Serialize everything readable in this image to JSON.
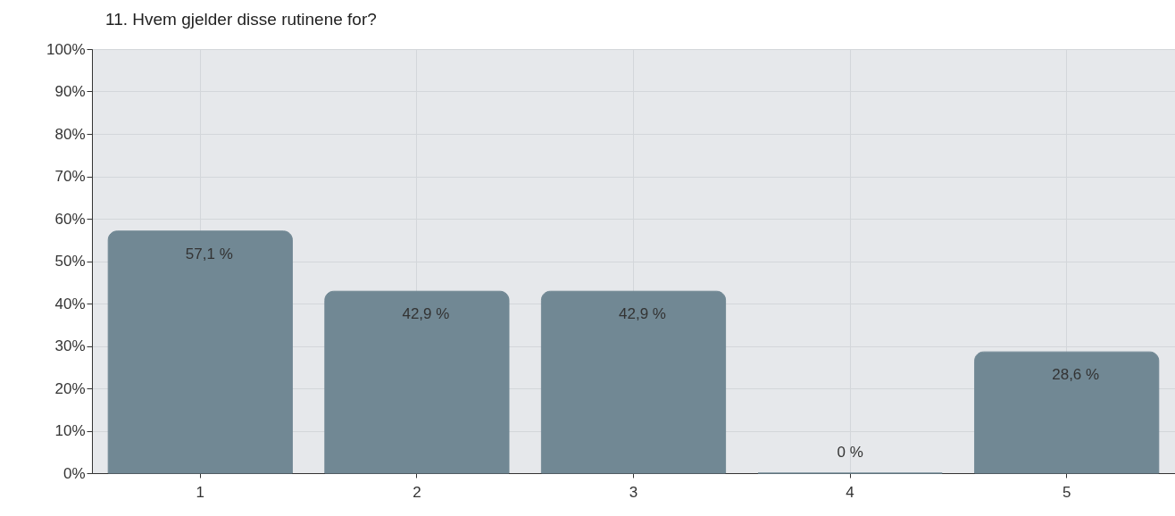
{
  "chart_data": {
    "type": "bar",
    "title": "11. Hvem gjelder disse rutinene for?",
    "categories": [
      "1",
      "2",
      "3",
      "4",
      "5"
    ],
    "values": [
      57.1,
      42.9,
      42.9,
      0,
      28.6
    ],
    "value_labels": [
      "57,1 %",
      "42,9 %",
      "42,9 %",
      "0 %",
      "28,6 %"
    ],
    "color": "#718894",
    "ylim": [
      0,
      100
    ],
    "yticks": [
      {
        "value": 0,
        "label": "0%"
      },
      {
        "value": 10,
        "label": "10%"
      },
      {
        "value": 20,
        "label": "20%"
      },
      {
        "value": 30,
        "label": "30%"
      },
      {
        "value": 40,
        "label": "40%"
      },
      {
        "value": 50,
        "label": "50%"
      },
      {
        "value": 60,
        "label": "60%"
      },
      {
        "value": 70,
        "label": "70%"
      },
      {
        "value": 80,
        "label": "80%"
      },
      {
        "value": 90,
        "label": "90%"
      },
      {
        "value": 100,
        "label": "100%"
      }
    ],
    "grid": true
  }
}
